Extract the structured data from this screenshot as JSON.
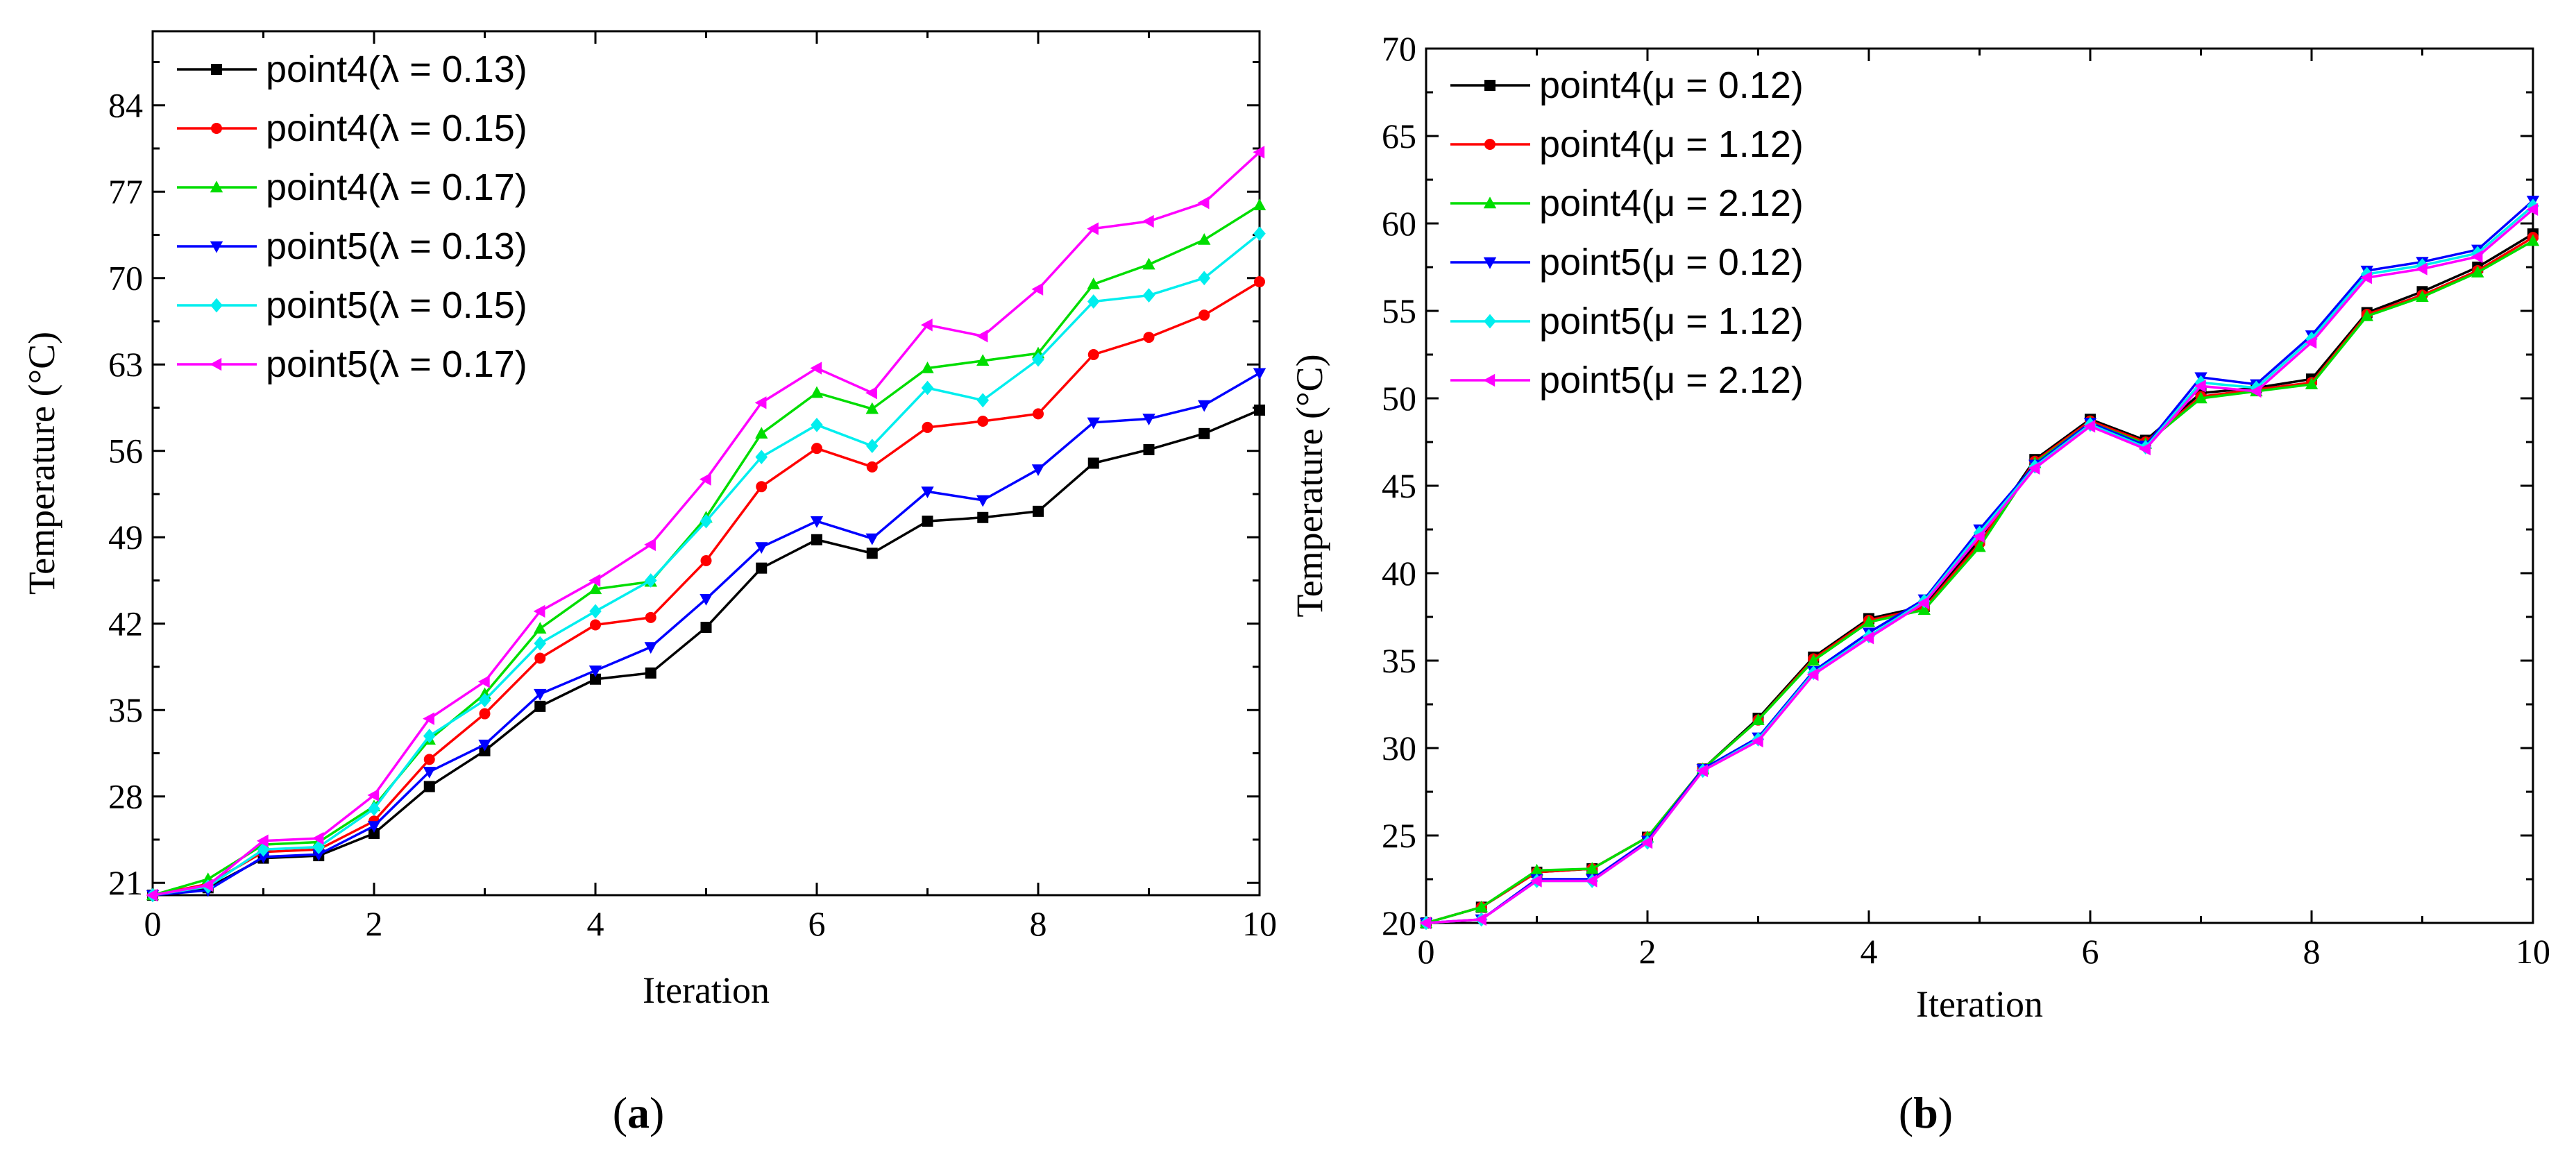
{
  "chart_data": [
    {
      "type": "line",
      "panel_label_open": "(",
      "panel_label_letter": "a",
      "panel_label_close": ")",
      "xlabel": "Iteration",
      "ylabel": "Temperature (°C)",
      "xlim": [
        0,
        10
      ],
      "ylim": [
        20,
        90
      ],
      "xticks": [
        0,
        2,
        4,
        6,
        8,
        10
      ],
      "yticks": [
        21,
        28,
        35,
        42,
        49,
        56,
        63,
        70,
        77,
        84
      ],
      "legend_position": "top-left",
      "x": [
        0,
        0.5,
        1,
        1.5,
        2,
        2.5,
        3,
        3.5,
        4,
        4.5,
        5,
        5.5,
        6,
        6.5,
        7,
        7.5,
        8,
        8.5,
        9,
        9.5,
        10
      ],
      "series": [
        {
          "name": "point4(λ = 0.13)",
          "color": "#000000",
          "marker": "square",
          "values": [
            20,
            20.6,
            23.0,
            23.2,
            25.0,
            28.8,
            31.7,
            35.3,
            37.5,
            38.0,
            41.7,
            46.5,
            48.8,
            47.7,
            50.3,
            50.6,
            51.1,
            55.0,
            56.1,
            57.4,
            59.3
          ]
        },
        {
          "name": "point4(λ = 0.15)",
          "color": "#ff0000",
          "marker": "circle",
          "values": [
            20,
            20.9,
            23.5,
            23.7,
            26.0,
            31.0,
            34.7,
            39.2,
            41.9,
            42.5,
            47.1,
            53.1,
            56.2,
            54.7,
            57.9,
            58.4,
            59.0,
            63.8,
            65.2,
            67.0,
            69.7
          ]
        },
        {
          "name": "point4(λ = 0.17)",
          "color": "#00dd00",
          "marker": "triangle-up",
          "values": [
            20,
            21.3,
            24.1,
            24.3,
            27.2,
            32.6,
            36.3,
            41.6,
            44.8,
            45.4,
            50.6,
            57.4,
            60.7,
            59.4,
            62.7,
            63.3,
            63.9,
            69.5,
            71.1,
            73.1,
            75.9
          ]
        },
        {
          "name": "point5(λ = 0.13)",
          "color": "#0000ff",
          "marker": "triangle-down",
          "values": [
            20,
            20.4,
            23.1,
            23.3,
            25.6,
            30.0,
            32.2,
            36.3,
            38.2,
            40.1,
            44.0,
            48.2,
            50.3,
            48.9,
            52.7,
            52.0,
            54.5,
            58.3,
            58.6,
            59.7,
            62.3
          ]
        },
        {
          "name": "point5(λ = 0.15)",
          "color": "#00eeee",
          "marker": "diamond",
          "values": [
            20,
            20.7,
            23.7,
            23.9,
            27.0,
            32.9,
            35.8,
            40.4,
            43.0,
            45.5,
            50.3,
            55.5,
            58.1,
            56.4,
            61.1,
            60.1,
            63.4,
            68.1,
            68.6,
            70.0,
            73.6
          ]
        },
        {
          "name": "point5(λ = 0.17)",
          "color": "#ff00ff",
          "marker": "triangle-left",
          "values": [
            20,
            20.8,
            24.4,
            24.6,
            28.1,
            34.3,
            37.3,
            43.0,
            45.5,
            48.4,
            53.7,
            59.9,
            62.7,
            60.7,
            66.2,
            65.3,
            69.1,
            74.0,
            74.6,
            76.1,
            80.2
          ]
        }
      ]
    },
    {
      "type": "line",
      "panel_label_open": "(",
      "panel_label_letter": "b",
      "panel_label_close": ")",
      "xlabel": "Iteration",
      "ylabel": "Temperature (°C)",
      "xlim": [
        0,
        10
      ],
      "ylim": [
        20,
        70
      ],
      "xticks": [
        0,
        2,
        4,
        6,
        8,
        10
      ],
      "yticks": [
        20,
        25,
        30,
        35,
        40,
        45,
        50,
        55,
        60,
        65,
        70
      ],
      "legend_position": "top-left",
      "x": [
        0,
        0.5,
        1,
        1.5,
        2,
        2.5,
        3,
        3.5,
        4,
        4.5,
        5,
        5.5,
        6,
        6.5,
        7,
        7.5,
        8,
        8.5,
        9,
        9.5,
        10
      ],
      "series": [
        {
          "name": "point4(μ = 0.12)",
          "color": "#000000",
          "marker": "square",
          "values": [
            20,
            20.9,
            22.9,
            23.1,
            24.9,
            28.8,
            31.7,
            35.2,
            37.4,
            38.1,
            41.9,
            46.5,
            48.8,
            47.6,
            50.3,
            50.6,
            51.1,
            54.9,
            56.1,
            57.5,
            59.4
          ]
        },
        {
          "name": "point4(μ = 1.12)",
          "color": "#ff0000",
          "marker": "circle",
          "values": [
            20,
            20.9,
            22.9,
            23.1,
            24.9,
            28.8,
            31.6,
            35.1,
            37.3,
            38.0,
            41.7,
            46.4,
            48.7,
            47.5,
            50.1,
            50.5,
            50.9,
            54.8,
            55.9,
            57.3,
            59.2
          ]
        },
        {
          "name": "point4(μ = 2.12)",
          "color": "#00dd00",
          "marker": "triangle-up",
          "values": [
            20,
            20.9,
            23.0,
            23.1,
            24.9,
            28.8,
            31.6,
            35.0,
            37.2,
            37.9,
            41.5,
            46.3,
            48.6,
            47.4,
            50.0,
            50.4,
            50.8,
            54.7,
            55.8,
            57.2,
            59.0
          ]
        },
        {
          "name": "point5(μ = 0.12)",
          "color": "#0000ff",
          "marker": "triangle-down",
          "values": [
            20,
            20.2,
            22.5,
            22.5,
            24.7,
            28.8,
            30.6,
            34.4,
            36.6,
            38.5,
            42.5,
            46.2,
            48.6,
            47.3,
            51.2,
            50.8,
            53.6,
            57.3,
            57.8,
            58.5,
            61.3
          ]
        },
        {
          "name": "point5(μ = 1.12)",
          "color": "#00eeee",
          "marker": "diamond",
          "values": [
            20,
            20.2,
            22.4,
            22.4,
            24.6,
            28.7,
            30.5,
            34.3,
            36.4,
            38.4,
            42.3,
            46.1,
            48.5,
            47.2,
            50.9,
            50.6,
            53.4,
            57.1,
            57.6,
            58.3,
            61.0
          ]
        },
        {
          "name": "point5(μ = 2.12)",
          "color": "#ff00ff",
          "marker": "triangle-left",
          "values": [
            20,
            20.2,
            22.4,
            22.4,
            24.6,
            28.7,
            30.4,
            34.2,
            36.3,
            38.3,
            42.1,
            46.0,
            48.4,
            47.1,
            50.7,
            50.4,
            53.2,
            56.9,
            57.4,
            58.1,
            60.8
          ]
        }
      ]
    }
  ]
}
